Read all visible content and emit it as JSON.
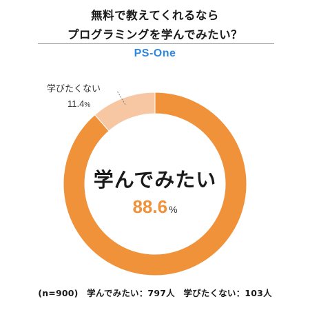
{
  "title_line1": "無料で教えてくれるなら",
  "title_line2": "プログラミングを学んでみたい？",
  "brand": "PS-One",
  "colors": {
    "brand": "#2e86de",
    "yes": "#f0923a",
    "no": "#f7c7a3"
  },
  "chart_data": {
    "type": "pie",
    "donut": true,
    "categories": [
      "学んでみたい",
      "学びたくない"
    ],
    "values": [
      88.6,
      11.4
    ],
    "unit": "%",
    "colors": [
      "#f0923a",
      "#f7c7a3"
    ],
    "labels": {
      "main_name": "学んでみたい",
      "main_value": "88.6",
      "minor_name": "学びたくない",
      "minor_value": "11.4",
      "percent": "%"
    }
  },
  "footer": {
    "sample": "(n=900)",
    "yes": "学んでみたい：797人",
    "no": "学びたくない：103人"
  }
}
